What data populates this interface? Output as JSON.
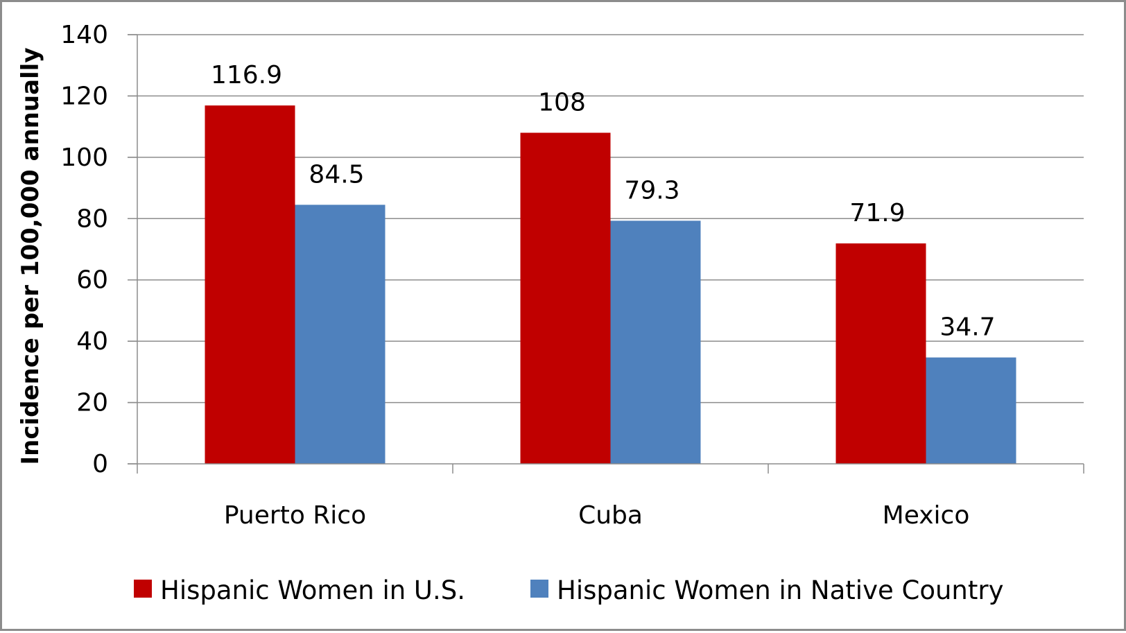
{
  "chart_data": {
    "type": "bar",
    "categories": [
      "Puerto Rico",
      "Cuba",
      "Mexico"
    ],
    "series": [
      {
        "name": "Hispanic Women in U.S.",
        "values": [
          116.9,
          108,
          71.9
        ],
        "value_labels": [
          "116.9",
          "108",
          "71.9"
        ],
        "color": "#c00000"
      },
      {
        "name": "Hispanic Women in Native Country",
        "values": [
          84.5,
          79.3,
          34.7
        ],
        "value_labels": [
          "84.5",
          "79.3",
          "34.7"
        ],
        "color": "#4f81bd"
      }
    ],
    "xlabel": "",
    "ylabel": "Incidence per 100,000 annually",
    "ylim": [
      0,
      140
    ],
    "yticks": [
      0,
      20,
      40,
      60,
      80,
      100,
      120,
      140
    ],
    "grid": true,
    "gridline_color": "#8c8c8c",
    "legend_position": "bottom"
  }
}
